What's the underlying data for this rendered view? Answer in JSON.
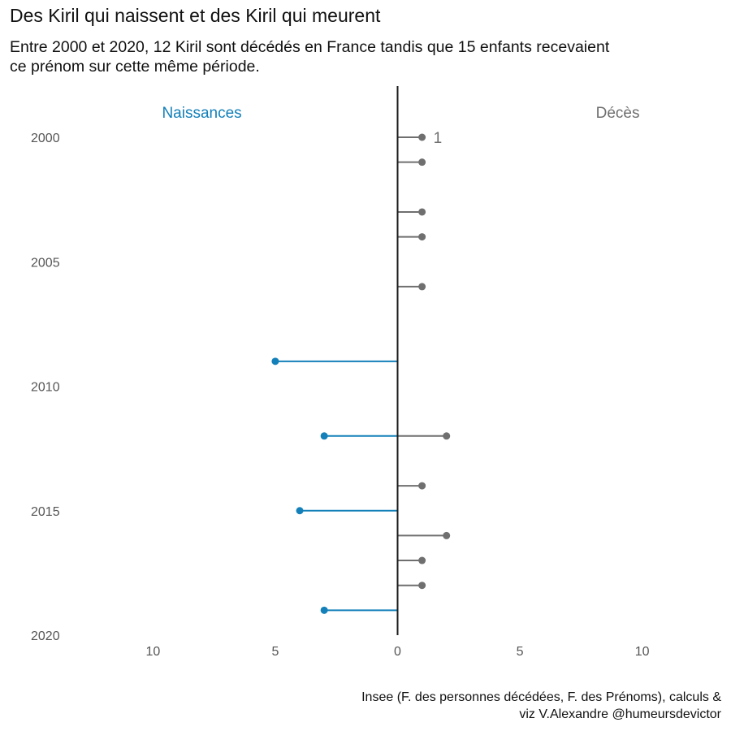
{
  "title": "Des Kiril qui naissent et des Kiril qui meurent",
  "subtitle": "Entre 2000 et 2020, 12 Kiril sont décédés en France tandis que 15 enfants recevaient ce prénom sur cette même période.",
  "caption": {
    "line1": "Insee (F. des personnes décédées, F. des Prénoms), calculs &",
    "line2": "viz V.Alexandre @humeursdevictor"
  },
  "colors": {
    "births": "#1380b9",
    "deaths": "#6f6f6f",
    "axis": "#1a1a1a"
  },
  "chart_data": {
    "type": "bar",
    "orientation": "horizontal-diverging",
    "left_label": "Naissances",
    "right_label": "Décès",
    "annotation": {
      "text": "1",
      "year": 2000
    },
    "xlim": [
      -13,
      13
    ],
    "ylim": [
      2000,
      2020
    ],
    "y_reversed": true,
    "x_ticks": [
      {
        "value": -10,
        "label": "10"
      },
      {
        "value": -5,
        "label": "5"
      },
      {
        "value": 0,
        "label": "0"
      },
      {
        "value": 5,
        "label": "5"
      },
      {
        "value": 10,
        "label": "10"
      }
    ],
    "y_ticks": [
      2000,
      2005,
      2010,
      2015,
      2020
    ],
    "grid": false,
    "series": [
      {
        "name": "Naissances",
        "side": "left",
        "points": [
          {
            "year": 2009,
            "value": 5
          },
          {
            "year": 2012,
            "value": 3
          },
          {
            "year": 2015,
            "value": 4
          },
          {
            "year": 2019,
            "value": 3
          }
        ]
      },
      {
        "name": "Décès",
        "side": "right",
        "points": [
          {
            "year": 2000,
            "value": 1
          },
          {
            "year": 2001,
            "value": 1
          },
          {
            "year": 2003,
            "value": 1
          },
          {
            "year": 2004,
            "value": 1
          },
          {
            "year": 2006,
            "value": 1
          },
          {
            "year": 2012,
            "value": 2
          },
          {
            "year": 2014,
            "value": 1
          },
          {
            "year": 2016,
            "value": 2
          },
          {
            "year": 2017,
            "value": 1
          },
          {
            "year": 2018,
            "value": 1
          }
        ]
      }
    ]
  }
}
